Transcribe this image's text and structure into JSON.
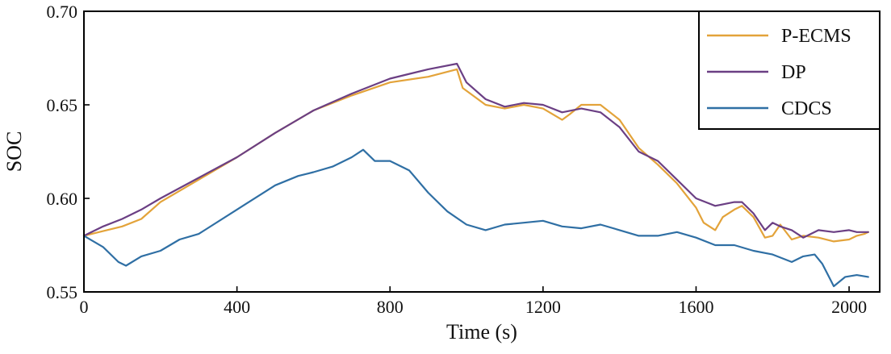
{
  "chart_data": {
    "type": "line",
    "title": "",
    "xlabel": "Time (s)",
    "ylabel": "SOC",
    "xlim": [
      0,
      2080
    ],
    "ylim": [
      0.55,
      0.7
    ],
    "xticks": [
      0,
      400,
      800,
      1200,
      1600,
      2000
    ],
    "xtick_labels": [
      "0",
      "400",
      "800",
      "1200",
      "1600",
      "2000"
    ],
    "yticks": [
      0.55,
      0.6,
      0.65,
      0.7
    ],
    "ytick_labels": [
      "0.55",
      "0.60",
      "0.65",
      "0.70"
    ],
    "grid": false,
    "legend_position": "top-right",
    "series": [
      {
        "name": "P-ECMS",
        "color": "#E3A33A",
        "x": [
          0,
          100,
          150,
          200,
          300,
          400,
          500,
          600,
          700,
          800,
          900,
          975,
          990,
          1050,
          1100,
          1150,
          1200,
          1250,
          1270,
          1300,
          1350,
          1400,
          1450,
          1500,
          1550,
          1600,
          1620,
          1650,
          1670,
          1700,
          1720,
          1750,
          1780,
          1800,
          1820,
          1850,
          1880,
          1920,
          1960,
          2000,
          2020,
          2040,
          2050
        ],
        "values": [
          0.58,
          0.585,
          0.589,
          0.598,
          0.61,
          0.622,
          0.635,
          0.647,
          0.655,
          0.662,
          0.665,
          0.669,
          0.659,
          0.65,
          0.648,
          0.65,
          0.648,
          0.642,
          0.645,
          0.65,
          0.65,
          0.642,
          0.627,
          0.618,
          0.608,
          0.595,
          0.587,
          0.583,
          0.59,
          0.594,
          0.596,
          0.59,
          0.579,
          0.58,
          0.586,
          0.578,
          0.58,
          0.579,
          0.577,
          0.578,
          0.58,
          0.581,
          0.582
        ]
      },
      {
        "name": "DP",
        "color": "#6B3F84",
        "x": [
          0,
          50,
          100,
          150,
          200,
          300,
          400,
          500,
          600,
          700,
          800,
          900,
          975,
          1000,
          1050,
          1100,
          1150,
          1200,
          1250,
          1300,
          1350,
          1400,
          1450,
          1500,
          1550,
          1600,
          1650,
          1700,
          1720,
          1750,
          1780,
          1800,
          1820,
          1850,
          1880,
          1920,
          1960,
          2000,
          2020,
          2050
        ],
        "values": [
          0.58,
          0.585,
          0.589,
          0.594,
          0.6,
          0.611,
          0.622,
          0.635,
          0.647,
          0.656,
          0.664,
          0.669,
          0.672,
          0.662,
          0.653,
          0.649,
          0.651,
          0.65,
          0.646,
          0.648,
          0.646,
          0.638,
          0.625,
          0.62,
          0.61,
          0.6,
          0.596,
          0.598,
          0.598,
          0.592,
          0.583,
          0.587,
          0.585,
          0.583,
          0.579,
          0.583,
          0.582,
          0.583,
          0.582,
          0.582
        ]
      },
      {
        "name": "CDCS",
        "color": "#2F6FA4",
        "x": [
          0,
          50,
          90,
          110,
          150,
          200,
          250,
          300,
          400,
          500,
          560,
          600,
          650,
          700,
          730,
          760,
          800,
          850,
          900,
          950,
          1000,
          1050,
          1100,
          1150,
          1200,
          1250,
          1300,
          1350,
          1400,
          1450,
          1500,
          1550,
          1600,
          1650,
          1700,
          1750,
          1800,
          1850,
          1880,
          1910,
          1930,
          1950,
          1960,
          1990,
          2020,
          2050
        ],
        "values": [
          0.58,
          0.574,
          0.566,
          0.564,
          0.569,
          0.572,
          0.578,
          0.581,
          0.594,
          0.607,
          0.612,
          0.614,
          0.617,
          0.622,
          0.626,
          0.62,
          0.62,
          0.615,
          0.603,
          0.593,
          0.586,
          0.583,
          0.586,
          0.587,
          0.588,
          0.585,
          0.584,
          0.586,
          0.583,
          0.58,
          0.58,
          0.582,
          0.579,
          0.575,
          0.575,
          0.572,
          0.57,
          0.566,
          0.569,
          0.57,
          0.565,
          0.557,
          0.553,
          0.558,
          0.559,
          0.558
        ]
      }
    ]
  }
}
